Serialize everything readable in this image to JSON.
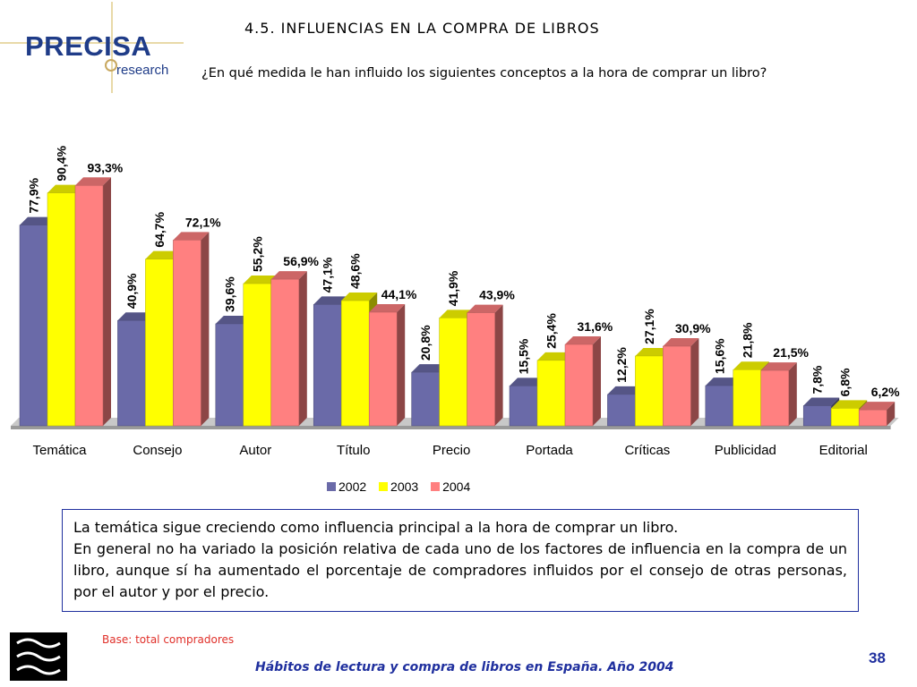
{
  "header": {
    "logo_text": "PRECISA",
    "logo_sub": "research",
    "title": "4.5. INFLUENCIAS EN LA COMPRA DE LIBROS",
    "subtitle": "¿En qué medida le han influido los siguientes conceptos a la hora de comprar un libro?"
  },
  "chart_data": {
    "type": "bar",
    "categories": [
      "Temática",
      "Consejo",
      "Autor",
      "Título",
      "Precio",
      "Portada",
      "Críticas",
      "Publicidad",
      "Editorial"
    ],
    "series": [
      {
        "name": "2002",
        "values": [
          77.9,
          40.9,
          39.6,
          47.1,
          20.8,
          15.5,
          12.2,
          15.6,
          7.8
        ],
        "labels": [
          "77,9%",
          "40,9%",
          "39,6%",
          "47,1%",
          "20,8%",
          "15,5%",
          "12,2%",
          "15,6%",
          "7,8%"
        ],
        "color": "#6a6aa8"
      },
      {
        "name": "2003",
        "values": [
          90.4,
          64.7,
          55.2,
          48.6,
          41.9,
          25.4,
          27.1,
          21.8,
          6.8
        ],
        "labels": [
          "90,4%",
          "64,7%",
          "55,2%",
          "48,6%",
          "41,9%",
          "25,4%",
          "27,1%",
          "21,8%",
          "6,8%"
        ],
        "color": "#ffff00"
      },
      {
        "name": "2004",
        "values": [
          93.3,
          72.1,
          56.9,
          44.1,
          43.9,
          31.6,
          30.9,
          21.5,
          6.2
        ],
        "labels": [
          "93,3%",
          "72,1%",
          "56,9%",
          "44,1%",
          "43,9%",
          "31,6%",
          "30,9%",
          "21,5%",
          "6,2%"
        ],
        "color": "#ff8080"
      }
    ],
    "ylim": [
      0,
      100
    ],
    "grid": false,
    "legend": "bottom"
  },
  "note": {
    "line1": "La temática sigue creciendo como influencia principal a la hora de comprar un libro.",
    "line2": "En general no ha variado la posición relativa de cada uno de los factores de influencia en la compra de un libro, aunque sí ha aumentado el porcentaje de compradores influidos por el consejo de otras personas, por el autor y por el precio."
  },
  "base": "Base: total compradores",
  "footer": "Hábitos de lectura y compra de libros en España. Año 2004",
  "page_number": "38"
}
